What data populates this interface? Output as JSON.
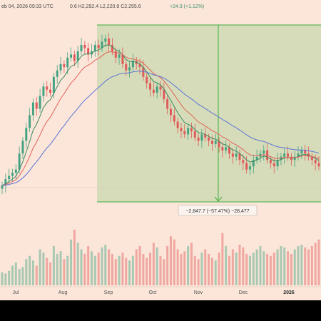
{
  "header": {
    "text": "eb 04, 2026 09:33 UTC",
    "ohlc": "0.6  H2,292.4  L2,220.9  C2,255.6",
    "change": "+24.9 (+1.12%)"
  },
  "measurement": {
    "label": "−2,847.7 (−57.47%) −28,477"
  },
  "colors": {
    "background": "#fbe6d9",
    "candle_up": "#44a382",
    "candle_down": "#e05a5a",
    "ema_green": "#3c8a60",
    "ema_red": "#e0635a",
    "ema_blue": "#5b74d6",
    "zone_fill": "#c9d8ae",
    "zone_line": "#3fae3f"
  },
  "chart_data": {
    "type": "candlestick",
    "title": "",
    "x_labels": [
      "Jul",
      "Aug",
      "Sep",
      "Oct",
      "Nov",
      "Dec",
      "2026"
    ],
    "measure_zone": {
      "change": -2847.7,
      "change_pct": -57.47,
      "ticks": -28477
    },
    "series": [
      {
        "name": "",
        "kind": "price",
        "values": [
          4,
          6,
          7,
          8,
          9,
          14,
          18,
          22,
          26,
          30,
          28,
          32,
          35,
          34,
          33,
          38,
          40,
          42,
          41,
          44,
          45,
          43,
          46,
          48,
          47,
          45,
          46,
          48,
          47,
          49,
          50,
          48,
          46,
          44,
          45,
          42,
          40,
          41,
          43,
          42,
          41,
          38,
          36,
          34,
          33,
          35,
          34,
          31,
          28,
          26,
          24,
          22,
          21,
          20,
          22,
          21,
          19,
          18,
          20,
          19,
          18,
          17,
          18,
          16,
          15,
          16,
          14,
          13,
          14,
          12,
          11,
          9,
          10,
          12,
          13,
          14,
          15,
          12,
          11,
          10,
          12,
          13,
          14,
          13,
          12,
          13,
          14,
          15,
          14,
          13,
          12,
          11,
          10
        ]
      },
      {
        "name": "",
        "kind": "volume",
        "values": [
          20,
          18,
          22,
          30,
          35,
          25,
          28,
          40,
          45,
          38,
          30,
          55,
          50,
          42,
          35,
          60,
          48,
          52,
          40,
          45,
          70,
          85,
          65,
          55,
          48,
          60,
          52,
          45,
          50,
          58,
          62,
          55,
          48,
          40,
          45,
          50,
          42,
          38,
          45,
          55,
          60,
          48,
          42,
          50,
          65,
          58,
          45,
          40,
          60,
          75,
          70,
          55,
          48,
          52,
          60,
          65,
          45,
          40,
          50,
          55,
          48,
          42,
          38,
          50,
          80,
          60,
          45,
          55,
          50,
          62,
          58,
          48,
          45,
          50,
          55,
          60,
          52,
          48,
          45,
          50,
          55,
          60,
          58,
          52,
          48,
          55,
          60,
          62,
          58,
          55,
          60,
          65,
          70
        ]
      }
    ]
  }
}
